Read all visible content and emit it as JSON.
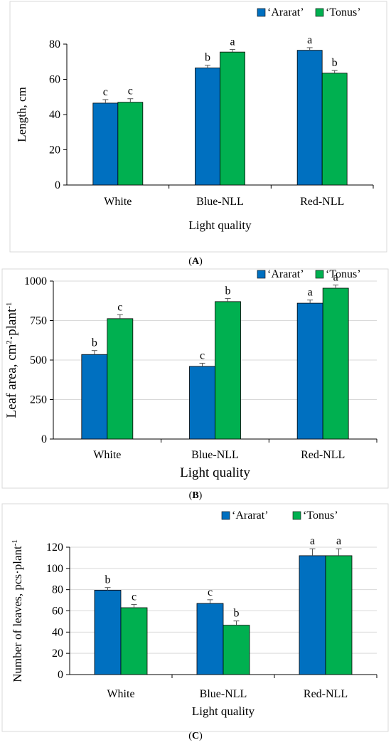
{
  "colors": {
    "ararat": "#0070C0",
    "tonus": "#00B050",
    "frame": "#d9d9d9",
    "axis": "#000000"
  },
  "chart_data": [
    {
      "type": "bar",
      "panel_label": "A",
      "categories": [
        "White",
        "Blue-NLL",
        "Red-NLL"
      ],
      "series": [
        {
          "name": "‘Ararat’",
          "values": [
            46.5,
            66.5,
            76.5
          ],
          "errors": [
            2.0,
            1.5,
            1.5
          ],
          "letters": [
            "c",
            "b",
            "a"
          ]
        },
        {
          "name": "‘Tonus’",
          "values": [
            47,
            75.5,
            63.5
          ],
          "errors": [
            2.0,
            1.5,
            1.5
          ],
          "letters": [
            "c",
            "a",
            "b"
          ]
        }
      ],
      "xlabel": "Light quality",
      "ylabel": "Length, cm",
      "ylim": [
        0,
        80
      ],
      "yticks": [
        0,
        20,
        40,
        60,
        80
      ],
      "grid": false,
      "legend": "top-right"
    },
    {
      "type": "bar",
      "panel_label": "B",
      "categories": [
        "White",
        "Blue-NLL",
        "Red-NLL"
      ],
      "series": [
        {
          "name": "‘Ararat’",
          "values": [
            535,
            460,
            860
          ],
          "errors": [
            25,
            20,
            20
          ],
          "letters": [
            "b",
            "c",
            "a"
          ]
        },
        {
          "name": "‘Tonus’",
          "values": [
            762,
            870,
            955
          ],
          "errors": [
            25,
            20,
            20
          ],
          "letters": [
            "c",
            "b",
            "a"
          ]
        }
      ],
      "xlabel": "Light quality",
      "ylabel": "Leaf area, cm²·plant⁻¹",
      "ylabel_main": "Leaf area, cm",
      "ylabel_sup1": "2",
      "ylabel_mid": "·plant",
      "ylabel_sup2": "-1",
      "ylim": [
        0,
        1000
      ],
      "yticks": [
        0,
        250,
        500,
        750,
        1000
      ],
      "grid": true,
      "legend": "top-right"
    },
    {
      "type": "bar",
      "panel_label": "C",
      "categories": [
        "White",
        "Blue-NLL",
        "Red-NLL"
      ],
      "series": [
        {
          "name": "‘Ararat’",
          "values": [
            79.5,
            67,
            112
          ],
          "errors": [
            2.5,
            3.5,
            6.5
          ],
          "letters": [
            "b",
            "c",
            "a"
          ]
        },
        {
          "name": "‘Tonus’",
          "values": [
            63,
            46.5,
            112
          ],
          "errors": [
            3.0,
            4.0,
            6.5
          ],
          "letters": [
            "c",
            "b",
            "a"
          ]
        }
      ],
      "xlabel": "Light quality",
      "ylabel": "Number of leaves, pcs·plant⁻¹",
      "ylabel_main": "Number of leaves, pcs·plant",
      "ylabel_sup1": "-1",
      "ylim": [
        0,
        120
      ],
      "yticks": [
        0,
        20,
        40,
        60,
        80,
        100,
        120
      ],
      "grid": true,
      "legend": "top-right"
    }
  ]
}
